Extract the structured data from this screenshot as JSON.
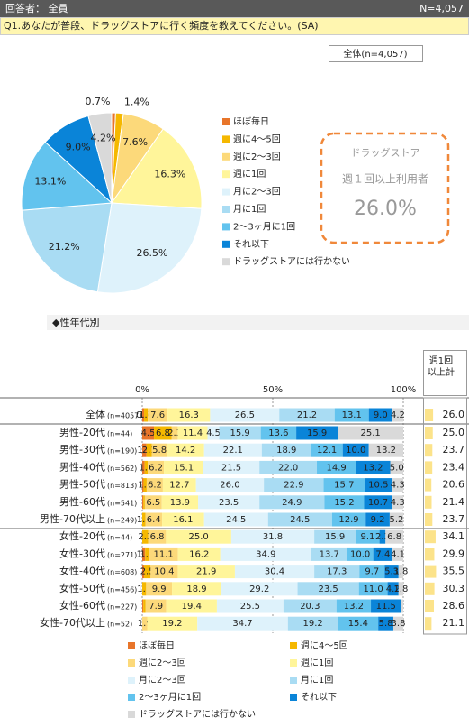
{
  "header": {
    "respondents": "回答者： 全員",
    "n": "N=4,057"
  },
  "question": "Q1.あなたが普段、ドラッグストアに行く頻度を教えてください。(SA)",
  "section": "◆性年代別",
  "callout": {
    "line1": "ドラッグストア",
    "line2": "週１回以上利用者",
    "value": "26.0%"
  },
  "chart_data": [
    {
      "type": "pie",
      "title": "全体(n=4,057)",
      "categories": [
        "ほぼ毎日",
        "週に4～5回",
        "週に2～3回",
        "週に1回",
        "月に2～3回",
        "月に1回",
        "2～3ヶ月に1回",
        "それ以下",
        "ドラッグストアには行かない"
      ],
      "values": [
        0.7,
        1.4,
        7.6,
        16.3,
        26.5,
        21.2,
        13.1,
        9.0,
        4.2
      ],
      "value_labels": [
        "0.7%",
        "1.4%",
        "7.6%",
        "16.3%",
        "26.5%",
        "21.2%",
        "13.1%",
        "9.0%",
        "4.2%"
      ],
      "colors": [
        "#e8752a",
        "#f5b800",
        "#fcd97a",
        "#fff59a",
        "#def2fb",
        "#a9dcf3",
        "#62c3ee",
        "#0a84d8",
        "#d9d9d9"
      ]
    },
    {
      "type": "stacked_bar",
      "orientation": "horizontal",
      "categories": [
        "全体",
        "男性-20代",
        "男性-30代",
        "男性-40代",
        "男性-50代",
        "男性-60代",
        "男性-70代以上",
        "女性-20代",
        "女性-30代",
        "女性-40代",
        "女性-50代",
        "女性-60代",
        "女性-70代以上"
      ],
      "n_labels": [
        "(n=4057)",
        "(n=44)",
        "(n=190)",
        "(n=562)",
        "(n=813)",
        "(n=541)",
        "(n=249)",
        "(n=44)",
        "(n=271)",
        "(n=608)",
        "(n=456)",
        "(n=227)",
        "(n=52)"
      ],
      "xlim": [
        0,
        100
      ],
      "xticks": [
        {
          "value": 0,
          "label": "0%"
        },
        {
          "value": 50,
          "label": "50%"
        },
        {
          "value": 100,
          "label": "100%"
        }
      ],
      "series": [
        {
          "name": "ほぼ毎日",
          "color": "#e8752a",
          "values": [
            0.7,
            4.5,
            1.6,
            0.9,
            0.5,
            0.4,
            0,
            0,
            1.1,
            0.7,
            0,
            0.4,
            0
          ],
          "value_labels": [
            "0.7",
            "4.5",
            "1.6",
            null,
            null,
            null,
            null,
            null,
            "1.1",
            null,
            null,
            null,
            null
          ]
        },
        {
          "name": "週に4～5回",
          "color": "#f5b800",
          "values": [
            1.4,
            6.8,
            2.1,
            1.2,
            1.2,
            0.6,
            1.2,
            2.3,
            1.5,
            2.5,
            1.5,
            0.9,
            0
          ],
          "value_labels": [
            "1.4",
            "6.8",
            "2.1",
            "1.2",
            "1.2",
            null,
            "1.2",
            "2.3",
            "1.5",
            "2.5",
            "1.5",
            null,
            null
          ]
        },
        {
          "name": "週に2～3回",
          "color": "#fcd97a",
          "values": [
            7.6,
            2.3,
            5.8,
            6.2,
            6.2,
            6.5,
            6.4,
            6.8,
            11.1,
            10.4,
            9.9,
            7.9,
            1.9
          ],
          "value_labels": [
            "7.6",
            "2.3",
            "5.8",
            "6.2",
            "6.2",
            "6.5",
            "6.4",
            "6.8",
            "11.1",
            "10.4",
            "9.9",
            "7.9",
            "1.9"
          ]
        },
        {
          "name": "週に1回",
          "color": "#fff59a",
          "values": [
            16.3,
            11.4,
            14.2,
            15.1,
            12.7,
            13.9,
            16.1,
            25.0,
            16.2,
            21.9,
            18.9,
            19.4,
            19.2
          ],
          "value_labels": [
            "16.3",
            "11.4",
            "14.2",
            "15.1",
            "12.7",
            "13.9",
            "16.1",
            "25.0",
            "16.2",
            "21.9",
            "18.9",
            "19.4",
            "19.2"
          ]
        },
        {
          "name": "月に2～3回",
          "color": "#def2fb",
          "values": [
            26.5,
            4.5,
            22.1,
            21.5,
            26.0,
            23.5,
            24.5,
            31.8,
            34.9,
            30.4,
            29.2,
            25.5,
            34.7
          ],
          "value_labels": [
            "26.5",
            "4.5",
            "22.1",
            "21.5",
            "26.0",
            "23.5",
            "24.5",
            "31.8",
            "34.9",
            "30.4",
            "29.2",
            "25.5",
            "34.7"
          ]
        },
        {
          "name": "月に1回",
          "color": "#a9dcf3",
          "values": [
            21.2,
            15.9,
            18.9,
            22.0,
            22.9,
            24.9,
            24.5,
            15.9,
            13.7,
            17.3,
            23.5,
            20.3,
            19.2
          ],
          "value_labels": [
            "21.2",
            "15.9",
            "18.9",
            "22.0",
            "22.9",
            "24.9",
            "24.5",
            "15.9",
            "13.7",
            "17.3",
            "23.5",
            "20.3",
            "19.2"
          ]
        },
        {
          "name": "2～3ヶ月に1回",
          "color": "#62c3ee",
          "values": [
            13.1,
            13.6,
            12.1,
            14.9,
            15.7,
            15.2,
            12.9,
            9.1,
            10.0,
            9.7,
            11.0,
            13.2,
            15.4
          ],
          "value_labels": [
            "13.1",
            "13.6",
            "12.1",
            "14.9",
            "15.7",
            "15.2",
            "12.9",
            "9.1",
            "10.0",
            "9.7",
            "11.0",
            "13.2",
            "15.4"
          ]
        },
        {
          "name": "それ以下",
          "color": "#0a84d8",
          "values": [
            9.0,
            15.9,
            10.0,
            13.2,
            10.5,
            10.7,
            9.2,
            2.3,
            7.4,
            5.3,
            4.2,
            11.5,
            5.8
          ],
          "value_labels": [
            "9.0",
            "15.9",
            "10.0",
            "13.2",
            "10.5",
            "10.7",
            "9.2",
            "2.3",
            "7.4",
            "5.3",
            "4.2",
            "11.5",
            "5.8"
          ]
        },
        {
          "name": "ドラッグストアには行かない",
          "color": "#d9d9d9",
          "values": [
            4.2,
            25.1,
            13.2,
            5.0,
            4.3,
            4.3,
            5.2,
            6.8,
            4.1,
            1.8,
            1.8,
            0.9,
            3.8
          ],
          "value_labels": [
            "4.2",
            "25.1",
            "13.2",
            "5.0",
            "4.3",
            "4.3",
            "5.2",
            "6.8",
            "4.1",
            "1.8",
            "1.8",
            null,
            "3.8"
          ]
        }
      ],
      "totals": {
        "title": "週1回以上計",
        "color": "#fce38a",
        "values": [
          26.0,
          25.0,
          23.7,
          23.4,
          20.6,
          21.4,
          23.7,
          34.1,
          29.9,
          35.5,
          30.3,
          28.6,
          21.1
        ],
        "value_labels": [
          "26.0",
          "25.0",
          "23.7",
          "23.4",
          "20.6",
          "21.4",
          "23.7",
          "34.1",
          "29.9",
          "35.5",
          "30.3",
          "28.6",
          "21.1"
        ]
      }
    }
  ]
}
